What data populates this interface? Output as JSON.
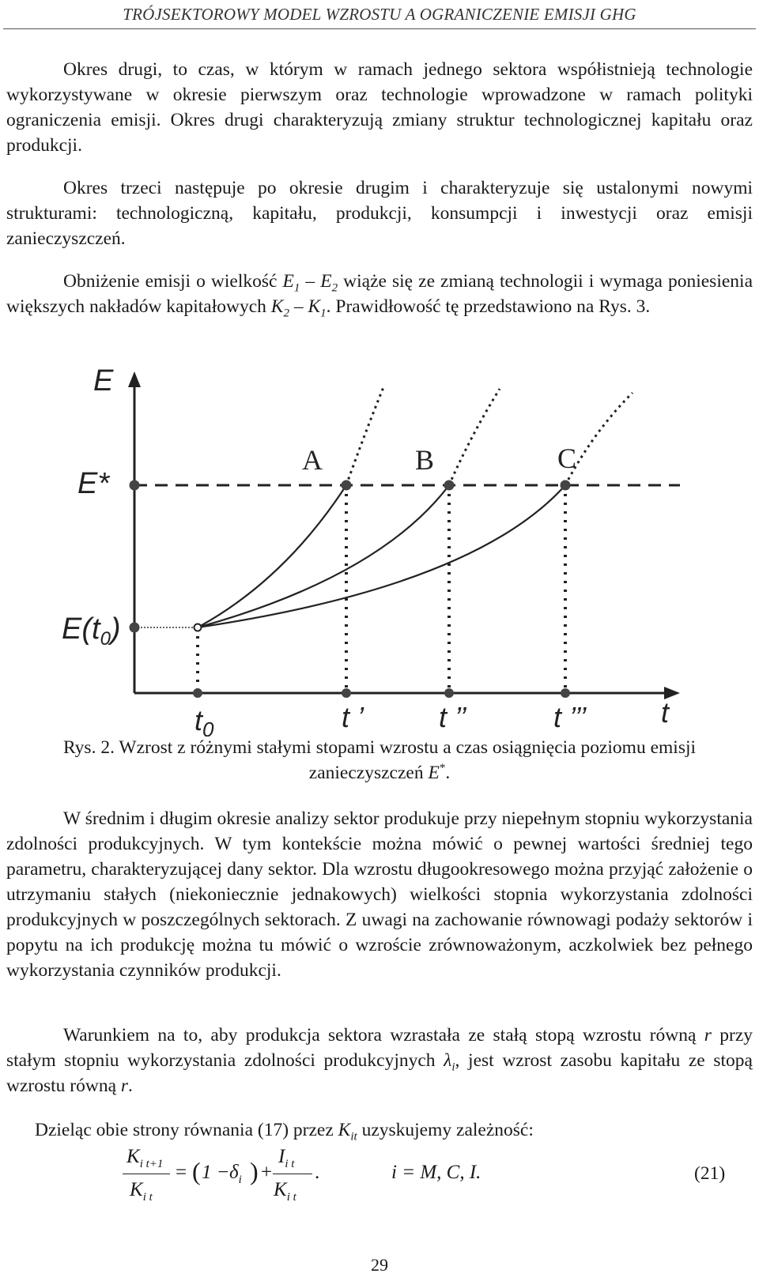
{
  "header": {
    "running_title": "TRÓJSEKTOROWY MODEL WZROSTU A OGRANICZENIE EMISJI GHG"
  },
  "paragraphs": {
    "p1": "Okres drugi, to czas, w którym w ramach jednego sektora współistnieją technologie wykorzystywane w okresie pierwszym oraz technologie wprowadzone w ramach polityki ograniczenia emisji. Okres drugi charakteryzują zmiany struktur technologicznej kapitału oraz produkcji.",
    "p2": "Okres trzeci następuje po okresie drugim i charakteryzuje się ustalonymi nowymi strukturami: technologiczną, kapitału, produkcji, konsumpcji i inwestycji oraz emisji zanieczyszczeń.",
    "p3_a": "Obniżenie emisji o wielkość ",
    "p3_e1": "E",
    "p3_e1_sub": "1",
    "p3_dash1": " – ",
    "p3_e2": "E",
    "p3_e2_sub": "2",
    "p3_b": " wiąże się ze zmianą technologii i wymaga poniesienia większych nakładów kapitałowych ",
    "p3_k2": "K",
    "p3_k2_sub": "2",
    "p3_dash2": " – ",
    "p3_k1": "K",
    "p3_k1_sub": "1",
    "p3_c": ". Prawidłowość tę przedstawiono na Rys. 3.",
    "p4": "W średnim i długim okresie analizy sektor produkuje przy niepełnym stopniu wykorzystania zdolności produkcyjnych. W tym kontekście można mówić o pewnej wartości średniej tego parametru, charakteryzującej dany sektor. Dla wzrostu długookresowego można przyjąć założenie o utrzymaniu stałych (niekoniecznie jednakowych) wielkości stopnia wykorzystania zdolności produkcyjnych w poszczególnych sektorach. Z uwagi na zachowanie równowagi podaży sektorów i popytu na ich produkcję można tu mówić o wzroście zrównoważonym, aczkolwiek bez pełnego wykorzystania czynników produkcji.",
    "p5_a": "Warunkiem na to, aby produkcja sektora wzrastała ze stałą stopą wzrostu równą ",
    "p5_r1": "r",
    "p5_b": " przy stałym stopniu wykorzystania zdolności produkcyjnych ",
    "p5_lambda": "λ",
    "p5_lambda_sub": "i",
    "p5_c": ", jest wzrost zasobu kapitału ze stopą wzrostu równą ",
    "p5_r2": "r",
    "p5_d": ".",
    "p6_a": "Dzieląc obie strony równania (17) przez ",
    "p6_k": "K",
    "p6_k_sub": "it",
    "p6_b": " uzyskujemy zależność:"
  },
  "figure": {
    "y_axis_label": "E",
    "x_axis_label": "t",
    "threshold_label": "E*",
    "start_label": "E(t",
    "start_label_sub": "0",
    "start_label_end": ")",
    "curve_labels": [
      "A",
      "B",
      "C"
    ],
    "x_ticks": [
      "t",
      "t ’",
      "t ’’",
      "t ’’’"
    ],
    "x_tick0_sub": "0"
  },
  "caption": {
    "text": "Rys. 2. Wzrost z różnymi stałymi stopami wzrostu a czas osiągnięcia poziomu emisji zanieczyszczeń ",
    "symbol": "E",
    "symbol_sup": "*",
    "end": "."
  },
  "equation": {
    "lhs_num": "K",
    "lhs_num_sub": "i t+1",
    "lhs_den": "K",
    "lhs_den_sub": "i t",
    "equals": "=",
    "paren_open": "(",
    "one_minus": "1 − ",
    "delta": "δ",
    "delta_sub": "i",
    "paren_close": ")",
    "plus": "+",
    "rhs_num": "I",
    "rhs_num_sub": "i t",
    "rhs_den": "K",
    "rhs_den_sub": "i t",
    "period": ".",
    "index_def": "i = M, C, I.",
    "number": "(21)"
  },
  "page_number": "29"
}
